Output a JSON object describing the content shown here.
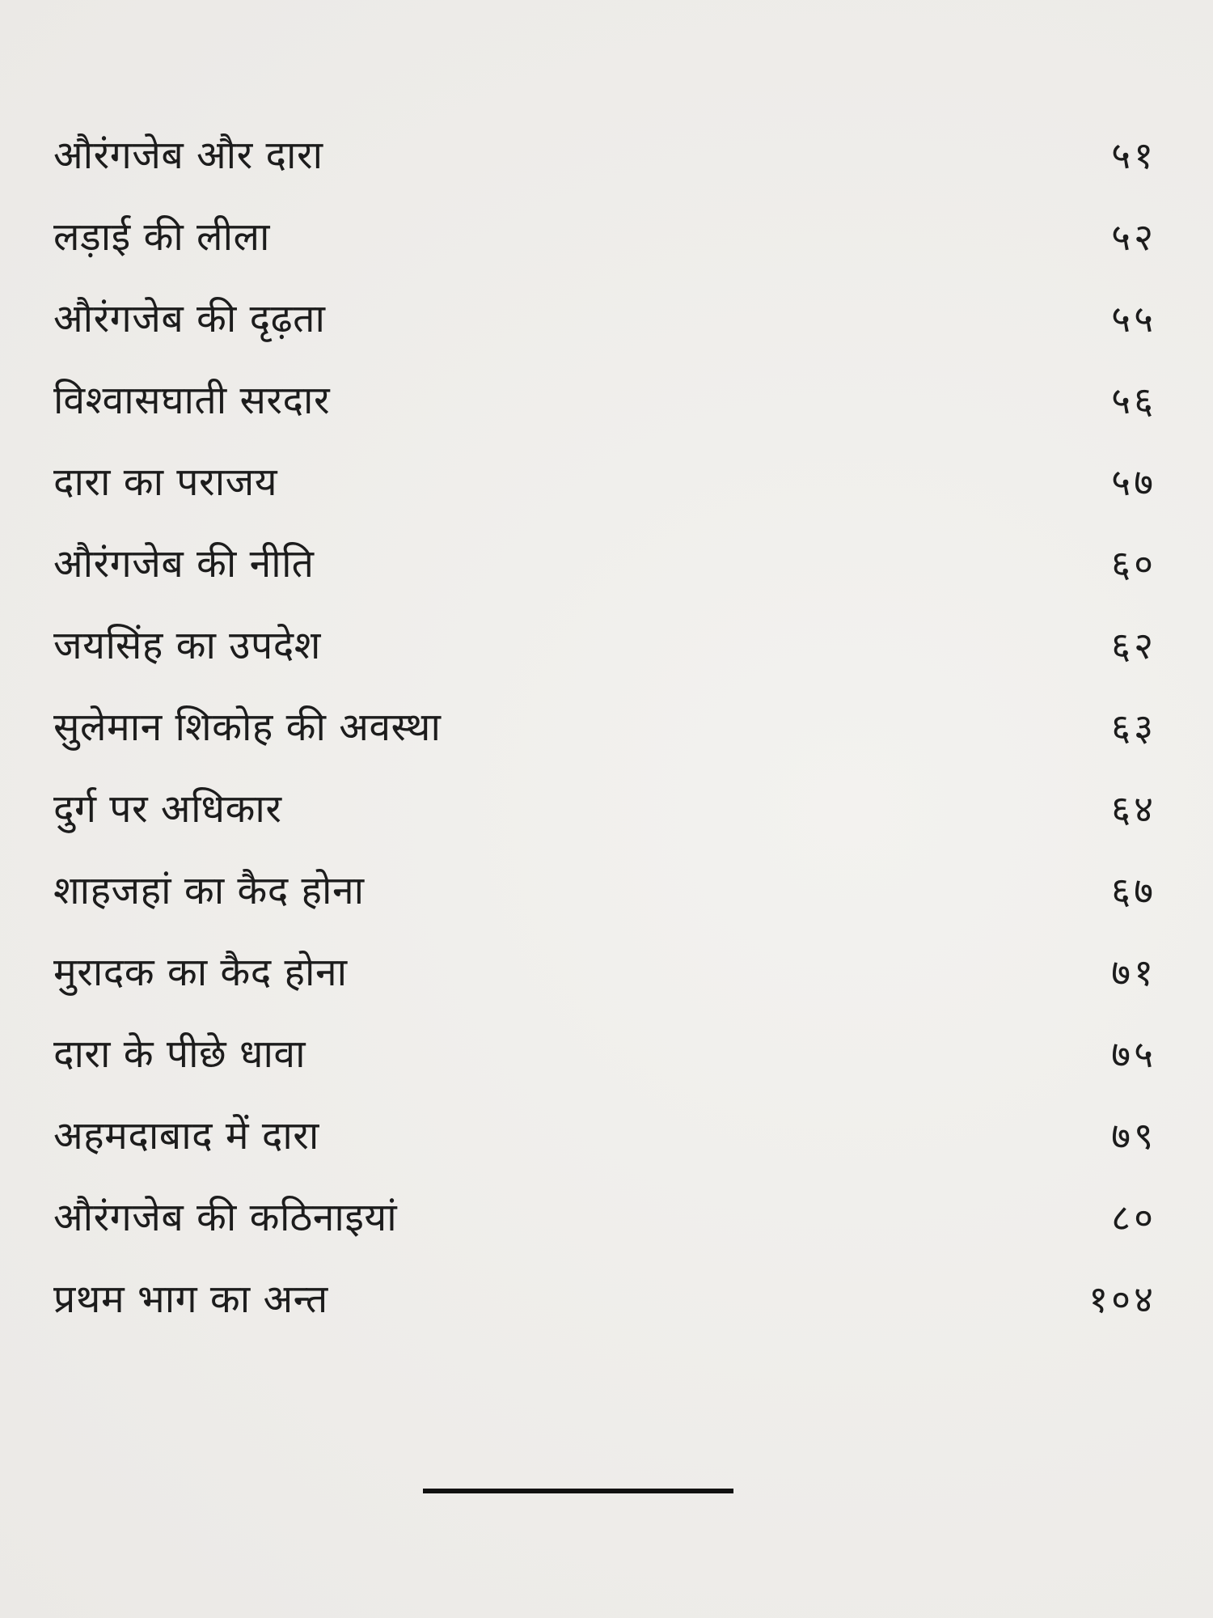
{
  "toc": {
    "entries": [
      {
        "title": "औरंगजेब और दारा",
        "page": "५१"
      },
      {
        "title": "लड़ाई की लीला",
        "page": "५२"
      },
      {
        "title": "औरंगजेब की दृढ़ता",
        "page": "५५"
      },
      {
        "title": "विश्वासघाती सरदार",
        "page": "५६"
      },
      {
        "title": "दारा का पराजय",
        "page": "५७"
      },
      {
        "title": "औरंगजेब की नीति",
        "page": "६०"
      },
      {
        "title": "जयसिंह का उपदेश",
        "page": "६२"
      },
      {
        "title": "सुलेमान शिकोह की अवस्था",
        "page": "६३"
      },
      {
        "title": "दुर्ग पर अधिकार",
        "page": "६४"
      },
      {
        "title": "शाहजहां का कैद होना",
        "page": "६७"
      },
      {
        "title": "मुरादक का कैद होना",
        "page": "७१"
      },
      {
        "title": "दारा के पीछे धावा",
        "page": "७५"
      },
      {
        "title": "अहमदाबाद में दारा",
        "page": "७९"
      },
      {
        "title": "औरंगजेब की कठिनाइयां",
        "page": "८०"
      },
      {
        "title": "प्रथम भाग का अन्त",
        "page": "१०४"
      }
    ]
  }
}
